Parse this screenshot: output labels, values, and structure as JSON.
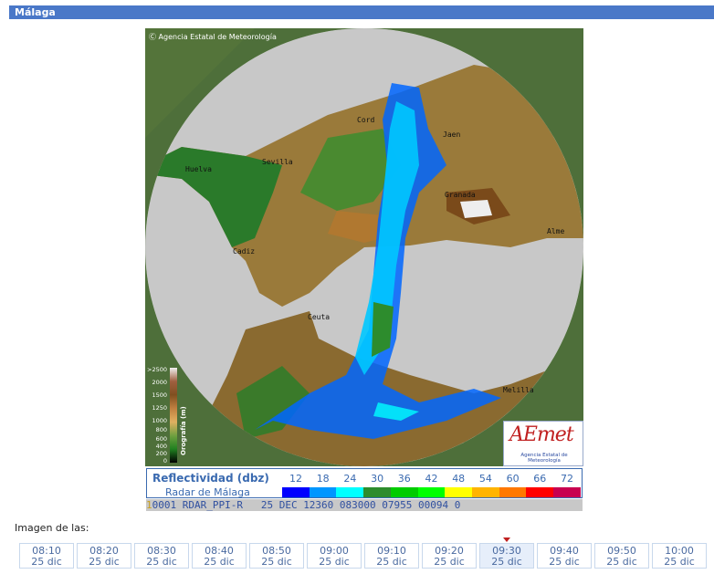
{
  "header": {
    "title": "Málaga"
  },
  "radar": {
    "copyright": "Agencia Estatal de Meteorología",
    "cities": [
      {
        "name": "Cord",
        "cls": "c-cord"
      },
      {
        "name": "Jaen",
        "cls": "c-jaen"
      },
      {
        "name": "Sevilla",
        "cls": "c-sevilla"
      },
      {
        "name": "Huelva",
        "cls": "c-huelva"
      },
      {
        "name": "Granada",
        "cls": "c-granada"
      },
      {
        "name": "Alme",
        "cls": "c-alme"
      },
      {
        "name": "Cadiz",
        "cls": "c-cadiz"
      },
      {
        "name": "Ceuta",
        "cls": "c-ceuta"
      },
      {
        "name": "Melilla",
        "cls": "c-melilla"
      }
    ],
    "orography_legend": {
      "title": "Orografía (m)",
      "values": [
        ">2500",
        "2000",
        "1500",
        "1250",
        "1000",
        "800",
        "600",
        "400",
        "200",
        "0"
      ]
    },
    "logo": {
      "text": "AEmet",
      "subtitle": "Agencia Estatal de Meteorología"
    }
  },
  "legend": {
    "title": "Reflectividad (dbz)",
    "subtitle": "Radar de Málaga",
    "scale": [
      {
        "value": "12",
        "color": "#0000ff"
      },
      {
        "value": "18",
        "color": "#0096ff"
      },
      {
        "value": "24",
        "color": "#00ffff"
      },
      {
        "value": "30",
        "color": "#2d8c2d"
      },
      {
        "value": "36",
        "color": "#00cc00"
      },
      {
        "value": "42",
        "color": "#00ff00"
      },
      {
        "value": "48",
        "color": "#ffff00"
      },
      {
        "value": "54",
        "color": "#ffb400"
      },
      {
        "value": "60",
        "color": "#ff7800"
      },
      {
        "value": "66",
        "color": "#ff0000"
      },
      {
        "value": "72",
        "color": "#c80050"
      }
    ]
  },
  "status": {
    "num": "1",
    "text": "0001 RDAR_PPI-R   25 DEC 12360 083000 07955 00094 0"
  },
  "imagen_label": "Imagen de las:",
  "times": [
    {
      "time": "08:10",
      "date": "25 dic"
    },
    {
      "time": "08:20",
      "date": "25 dic"
    },
    {
      "time": "08:30",
      "date": "25 dic"
    },
    {
      "time": "08:40",
      "date": "25 dic"
    },
    {
      "time": "08:50",
      "date": "25 dic"
    },
    {
      "time": "09:00",
      "date": "25 dic"
    },
    {
      "time": "09:10",
      "date": "25 dic"
    },
    {
      "time": "09:20",
      "date": "25 dic"
    },
    {
      "time": "09:30",
      "date": "25 dic",
      "selected": true
    },
    {
      "time": "09:40",
      "date": "25 dic"
    },
    {
      "time": "09:50",
      "date": "25 dic"
    },
    {
      "time": "10:00",
      "date": "25 dic"
    }
  ]
}
